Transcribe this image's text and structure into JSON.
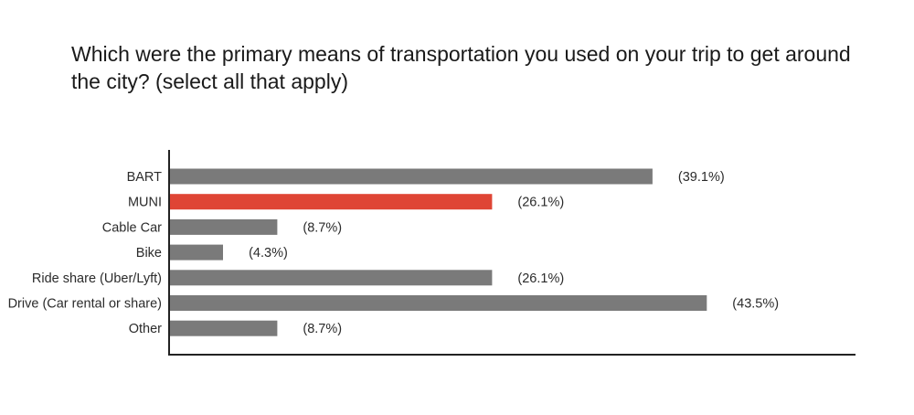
{
  "chart_data": {
    "type": "bar",
    "orientation": "horizontal",
    "title": "Which were the primary means of transportation you used on your trip to get around the city? (select all that apply)",
    "categories": [
      "BART",
      "MUNI",
      "Cable Car",
      "Bike",
      "Ride share (Uber/Lyft)",
      "Drive (Car rental or share)",
      "Other"
    ],
    "values": [
      39.1,
      26.1,
      8.7,
      4.3,
      26.1,
      43.5,
      8.7
    ],
    "value_labels": [
      "(39.1%)",
      "(26.1%)",
      "(8.7%)",
      "(4.3%)",
      "(26.1%)",
      "(43.5%)",
      "(8.7%)"
    ],
    "bar_colors": [
      "#7a7a7a",
      "#df4535",
      "#7a7a7a",
      "#7a7a7a",
      "#7a7a7a",
      "#7a7a7a",
      "#7a7a7a"
    ],
    "highlight_category": "MUNI",
    "axis_color": "#222222",
    "grid": false,
    "legend": "none",
    "xlabel": "",
    "ylabel": ""
  }
}
